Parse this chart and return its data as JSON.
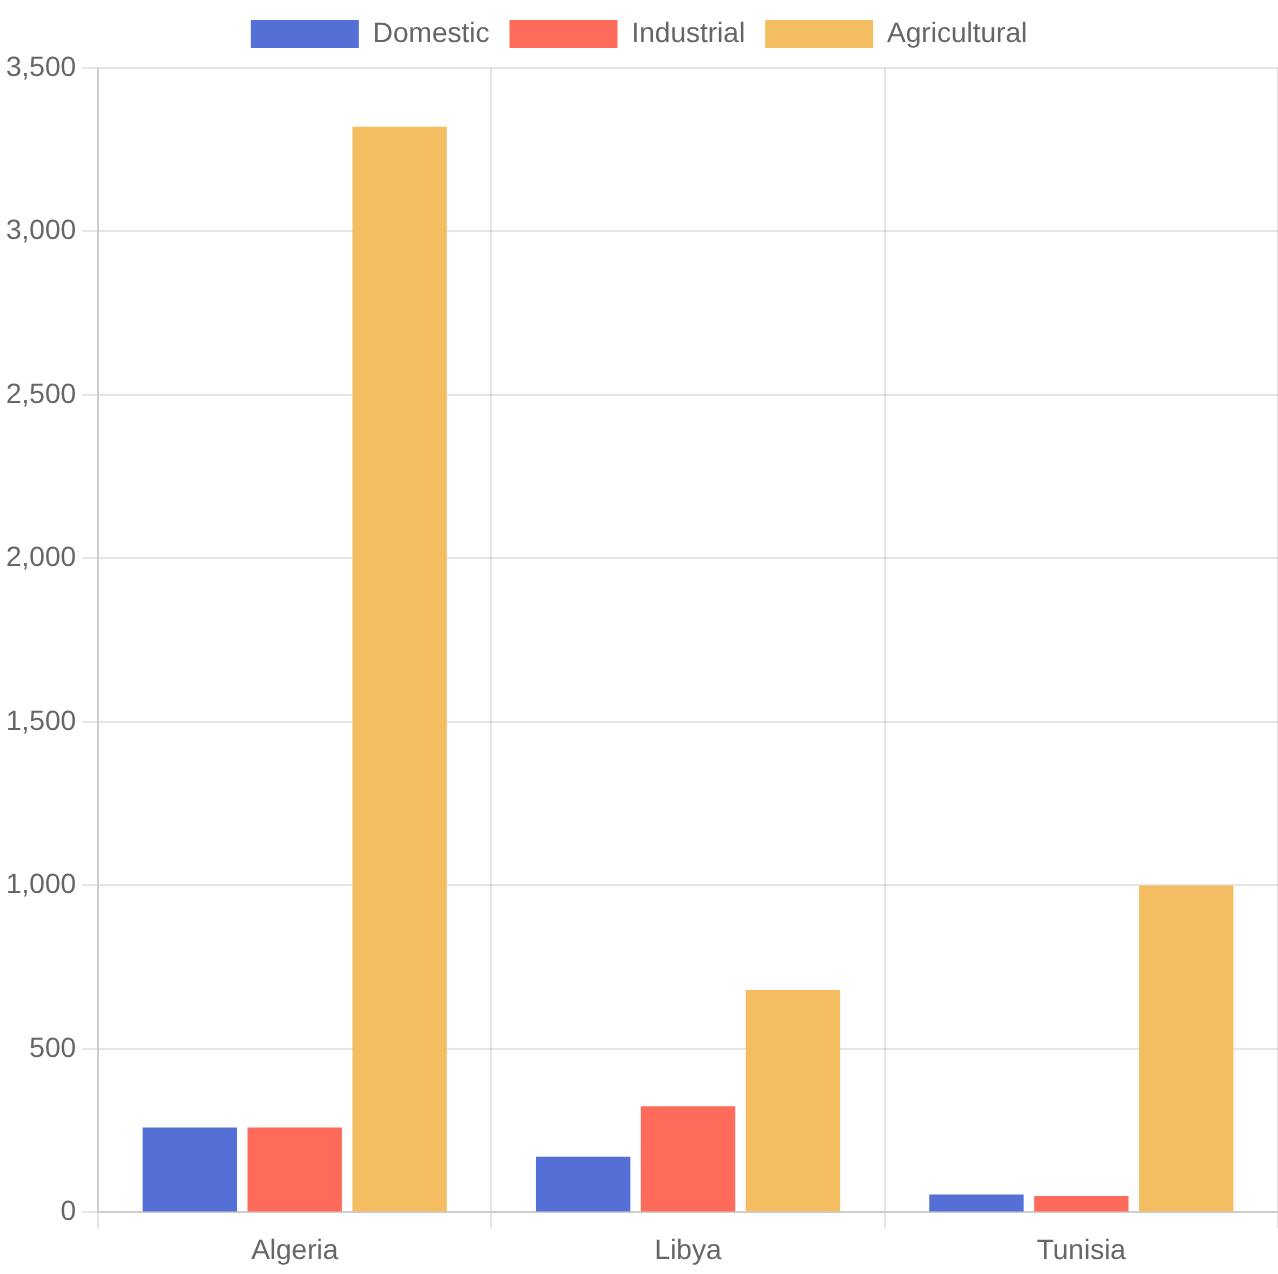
{
  "chart_data": {
    "type": "bar",
    "categories": [
      "Algeria",
      "Libya",
      "Tunisia"
    ],
    "series": [
      {
        "name": "Domestic",
        "color": "#5470d6",
        "values": [
          260,
          170,
          55
        ]
      },
      {
        "name": "Industrial",
        "color": "#ff6b5b",
        "values": [
          260,
          325,
          50
        ]
      },
      {
        "name": "Agricultural",
        "color": "#f5bd62",
        "values": [
          3320,
          680,
          1000
        ]
      }
    ],
    "ylim": [
      0,
      3500
    ],
    "yticks": [
      {
        "value": 0,
        "label": "0"
      },
      {
        "value": 500,
        "label": "500"
      },
      {
        "value": 1000,
        "label": "1,000"
      },
      {
        "value": 1500,
        "label": "1,500"
      },
      {
        "value": 2000,
        "label": "2,000"
      },
      {
        "value": 2500,
        "label": "2,500"
      },
      {
        "value": 3000,
        "label": "3,000"
      },
      {
        "value": 3500,
        "label": "3,500"
      }
    ],
    "grid": true,
    "legend": "top"
  }
}
